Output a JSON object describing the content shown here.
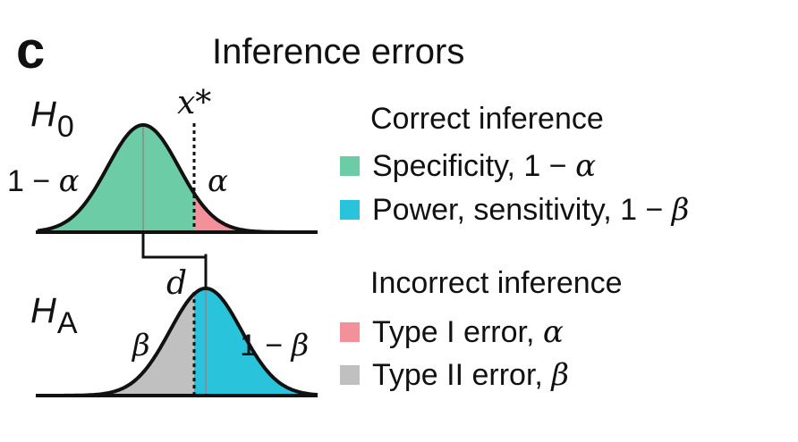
{
  "panel": {
    "letter": "c",
    "title": "Inference errors"
  },
  "diagram": {
    "null_hypothesis": {
      "symbol": "H",
      "subscript": "0"
    },
    "alt_hypothesis": {
      "symbol": "H",
      "subscript": "A"
    },
    "threshold_label": "x*",
    "effect_size_label": "d",
    "h0_left_label": "1 − ",
    "h0_left_greek": "α",
    "h0_right_greek": "α",
    "ha_left_greek": "β",
    "ha_right_label": "1 − ",
    "ha_right_greek": "β"
  },
  "legend": {
    "correct_heading": "Correct inference",
    "incorrect_heading": "Incorrect inference",
    "items": [
      {
        "text": "Specificity, 1 − ",
        "greek": "α",
        "color": "#6ccca6"
      },
      {
        "text": "Power, sensitivity, 1 − ",
        "greek": "β",
        "color": "#29c4dc"
      },
      {
        "text": "Type I error,  ",
        "greek": "α",
        "color": "#f4909a"
      },
      {
        "text": "Type II error,  ",
        "greek": "β",
        "color": "#c0c0c0"
      }
    ]
  },
  "colors": {
    "specificity": "#6ccca6",
    "power": "#29c4dc",
    "type1": "#f4909a",
    "type2": "#c0c0c0",
    "ink": "#111111"
  }
}
